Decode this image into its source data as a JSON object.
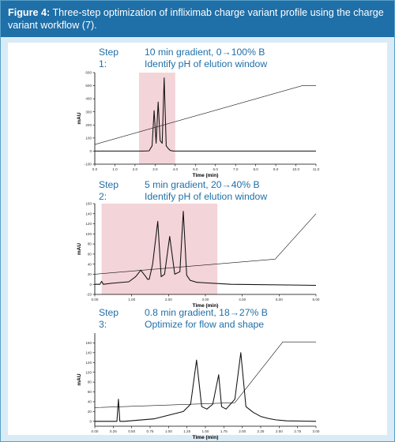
{
  "header": {
    "label": "Figure 4:",
    "text": " Three-step optimization of infliximab charge variant profile using the charge variant workflow (7)."
  },
  "colors": {
    "header_bg": "#1f6fa8",
    "frame_bg": "#d9ebf6",
    "highlight": "#f3d4d8",
    "step_text": "#1f6fa8"
  },
  "steps": [
    {
      "label": "Step 1:",
      "line1": "10 min gradient, 0→100% B",
      "line2": "Identify pH of elution window"
    },
    {
      "label": "Step 2:",
      "line1": "5 min gradient, 20→40% B",
      "line2": "Identify pH of elution window"
    },
    {
      "label": "Step 3:",
      "line1": "0.8 min gradient, 18→27% B",
      "line2": "Optimize for flow and shape"
    }
  ],
  "chart_data": [
    {
      "type": "line",
      "ylabel": "mAU",
      "xlabel": "Time (min)",
      "xlim": [
        0,
        11
      ],
      "ylim": [
        -100,
        600
      ],
      "xticks": [
        "0.0",
        "1.0",
        "2.0",
        "3.0",
        "4.0",
        "5.0",
        "6.0",
        "7.0",
        "8.0",
        "9.0",
        "10.0",
        "11.0"
      ],
      "yticks": [
        "-100",
        "0",
        "100",
        "200",
        "300",
        "400",
        "500",
        "600"
      ],
      "highlight": [
        2.2,
        4.0
      ],
      "series": [
        {
          "values_x": [
            0,
            2.4,
            2.7,
            2.85,
            2.95,
            3.05,
            3.15,
            3.25,
            3.35,
            3.45,
            3.55,
            3.65,
            3.75,
            3.9,
            4.3,
            11
          ],
          "values_y": [
            0,
            0,
            2,
            40,
            310,
            60,
            375,
            80,
            60,
            560,
            40,
            20,
            5,
            0,
            0,
            0
          ]
        },
        {
          "values_x": [
            0,
            10.3,
            11
          ],
          "values_y": [
            50,
            500,
            500
          ]
        }
      ]
    },
    {
      "type": "line",
      "ylabel": "mAU",
      "xlabel": "Time (min)",
      "xlim": [
        0,
        6.5
      ],
      "ylim": [
        -20,
        160
      ],
      "xticks": [
        "0.00",
        "1.00",
        "2.00",
        "3.00",
        "4.00",
        "5.00",
        "6.00"
      ],
      "yticks": [
        "-20",
        "0",
        "20",
        "40",
        "60",
        "80",
        "100",
        "120",
        "140",
        "160"
      ],
      "highlight": [
        0.2,
        3.6
      ],
      "series": [
        {
          "values_x": [
            0,
            0.15,
            0.2,
            0.25,
            0.5,
            1.0,
            1.2,
            1.35,
            1.5,
            1.55,
            1.6,
            1.7,
            1.85,
            1.95,
            2.05,
            2.2,
            2.35,
            2.5,
            2.6,
            2.7,
            2.8,
            3.0,
            4.0,
            6.5
          ],
          "values_y": [
            0,
            0,
            6,
            0,
            2,
            5,
            15,
            28,
            15,
            10,
            10,
            40,
            125,
            15,
            20,
            95,
            20,
            25,
            145,
            18,
            8,
            4,
            0,
            -2
          ]
        },
        {
          "values_x": [
            0,
            5.3,
            6.5
          ],
          "values_y": [
            20,
            50,
            140
          ]
        }
      ]
    },
    {
      "type": "line",
      "ylabel": "mAU",
      "xlabel": "Time (min)",
      "xlim": [
        0,
        3.0
      ],
      "ylim": [
        -10,
        180
      ],
      "xticks": [
        "0.00",
        "0.25",
        "0.50",
        "0.75",
        "1.00",
        "1.25",
        "1.50",
        "1.75",
        "2.00",
        "2.25",
        "2.50",
        "2.75",
        "3.00"
      ],
      "yticks": [
        "0",
        "20",
        "40",
        "60",
        "80",
        "100",
        "120",
        "140",
        "160"
      ],
      "series": [
        {
          "values_x": [
            0,
            0.3,
            0.32,
            0.34,
            0.4,
            0.8,
            1.2,
            1.3,
            1.38,
            1.45,
            1.52,
            1.6,
            1.68,
            1.72,
            1.78,
            1.84,
            1.9,
            1.98,
            2.05,
            2.15,
            2.25,
            2.35,
            2.45,
            2.6,
            3.0
          ],
          "values_y": [
            0,
            0,
            45,
            0,
            0,
            5,
            20,
            35,
            125,
            30,
            25,
            35,
            95,
            30,
            25,
            35,
            45,
            140,
            30,
            18,
            10,
            6,
            3,
            1,
            0
          ]
        },
        {
          "values_x": [
            0,
            1.9,
            2.55,
            3.0
          ],
          "values_y": [
            28,
            38,
            162,
            162
          ]
        }
      ]
    }
  ]
}
